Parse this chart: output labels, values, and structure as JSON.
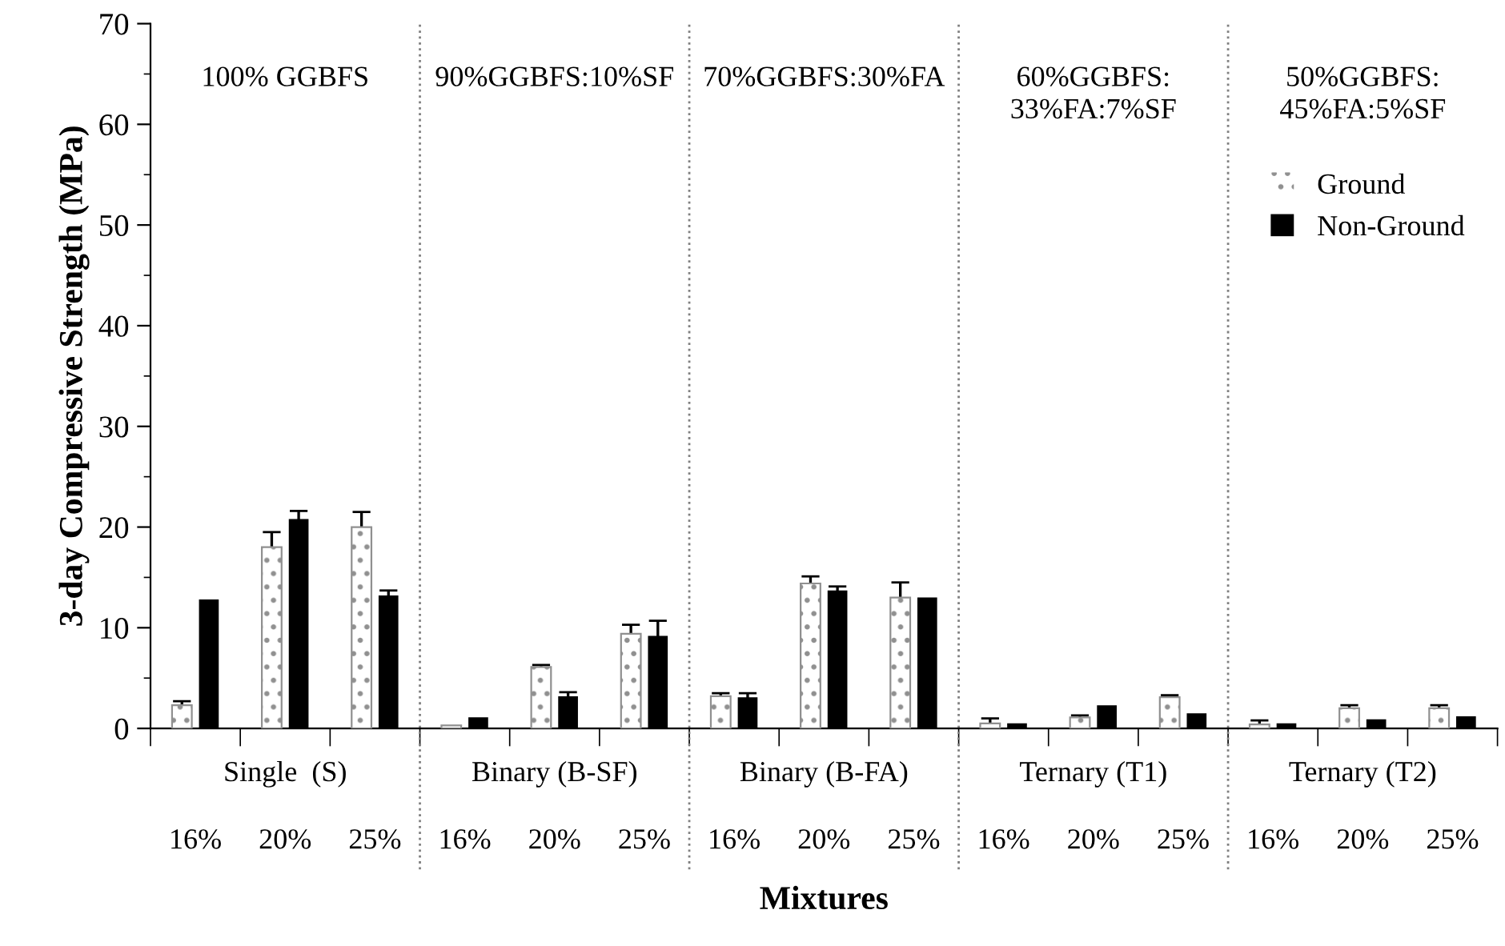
{
  "chart_data": {
    "type": "bar",
    "ylabel": "3-day Compressive Strength (MPa)",
    "xlabel": "Mixtures",
    "categories": [
      "16%",
      "20%",
      "25%",
      "16%",
      "20%",
      "25%",
      "16%",
      "20%",
      "25%",
      "16%",
      "20%",
      "25%",
      "16%",
      "20%",
      "25%"
    ],
    "series": [
      {
        "name": "Ground",
        "color": "#909090",
        "values": [
          2.3,
          18,
          20,
          0.3,
          6.1,
          9.4,
          3.2,
          14.4,
          13,
          0.5,
          1.1,
          3.1,
          0.4,
          2.0,
          2.0
        ],
        "errors": [
          0.4,
          1.5,
          1.5,
          null,
          0.2,
          0.9,
          0.3,
          0.7,
          1.5,
          0.5,
          0.2,
          0.2,
          0.4,
          0.3,
          0.3
        ]
      },
      {
        "name": "Non-Ground",
        "color": "#000000",
        "values": [
          12.8,
          20.8,
          13.2,
          1.1,
          3.2,
          9.2,
          3.1,
          13.7,
          13.0,
          0.5,
          2.3,
          1.5,
          0.5,
          0.9,
          1.2
        ],
        "errors": [
          null,
          0.8,
          0.5,
          null,
          0.4,
          1.5,
          0.4,
          0.4,
          null,
          null,
          null,
          null,
          null,
          null,
          null
        ]
      }
    ],
    "ylim": [
      0,
      70
    ],
    "yticks": [
      0,
      10,
      20,
      30,
      40,
      50,
      60,
      70
    ],
    "annotations": [
      "100% GGBFS",
      "90%GGBFS:10%SF",
      "70%GGBFS:30%FA",
      "60%GGBFS:\n33%FA:7%SF",
      "50%GGBFS:\n45%FA:5%SF",
      "Single  (S)",
      "Binary (B-SF)",
      "Binary (B-FA)",
      "Ternary (T1)",
      "Ternary (T2)"
    ],
    "legend": "center right",
    "grid": false
  }
}
